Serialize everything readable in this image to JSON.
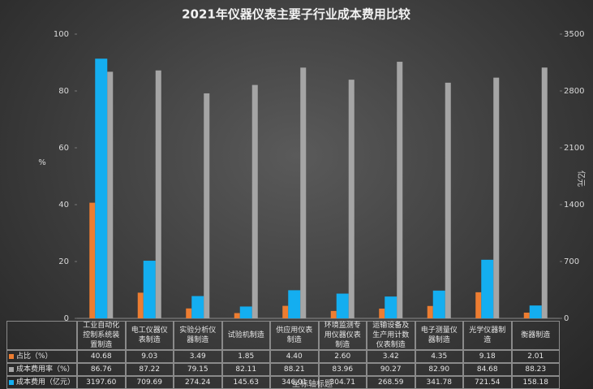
{
  "chart_data": {
    "type": "bar",
    "title": "2021年仪器仪表主要子行业成本费用比较",
    "ylabel": "%",
    "y2label": "亿元",
    "xlabel": "坐标轴标题",
    "categories": [
      "工业自动化控制系统装置制造",
      "电工仪器仪表制造",
      "实验分析仪器制造",
      "试验机制造",
      "供应用仪表制造",
      "环境监测专用仪器仪表制造",
      "运输设备及生产用计数仪表制造",
      "电子测量仪器制造",
      "光学仪器制造",
      "衡器制造"
    ],
    "series": [
      {
        "name": "占比（%）",
        "color": "#ed7d31",
        "values": [
          40.68,
          9.03,
          3.49,
          1.85,
          4.4,
          2.6,
          3.42,
          4.35,
          9.18,
          2.01
        ],
        "value_labels": [
          "40.68",
          "9.03",
          "3.49",
          "1.85",
          "4.40",
          "2.60",
          "3.42",
          "4.35",
          "9.18",
          "2.01"
        ]
      },
      {
        "name": "成本费用率（%）",
        "color": "#a5a5a5",
        "values": [
          86.76,
          87.22,
          79.15,
          82.11,
          88.21,
          83.96,
          90.27,
          82.9,
          84.68,
          88.23
        ],
        "value_labels": [
          "86.76",
          "87.22",
          "79.15",
          "82.11",
          "88.21",
          "83.96",
          "90.27",
          "82.90",
          "84.68",
          "88.23"
        ]
      },
      {
        "name": "成本费用（亿元）",
        "color": "#14aef0",
        "axis": "y2",
        "values": [
          3197.6,
          709.69,
          274.24,
          145.63,
          346.01,
          304.71,
          268.59,
          341.78,
          721.54,
          158.18
        ],
        "value_labels": [
          "3197.60",
          "709.69",
          "274.24",
          "145.63",
          "346.01",
          "304.71",
          "268.59",
          "341.78",
          "721.54",
          "158.18"
        ]
      }
    ],
    "ylim": [
      0,
      100
    ],
    "yticks": [
      0,
      20,
      40,
      60,
      80,
      100
    ],
    "y2lim": [
      0,
      3500
    ],
    "y2ticks": [
      0,
      700,
      1400,
      2100,
      2800,
      3500
    ],
    "grid": false
  }
}
